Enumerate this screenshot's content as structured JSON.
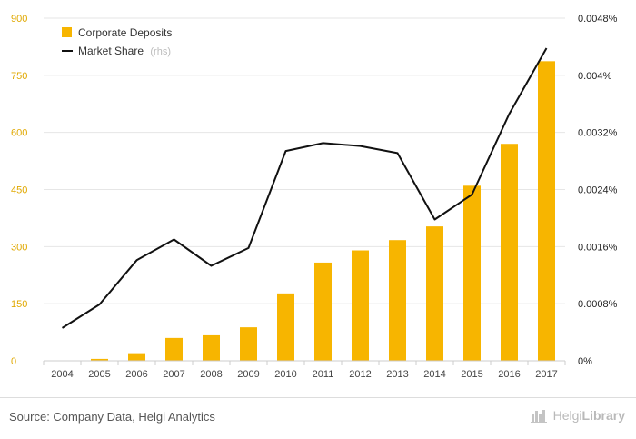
{
  "chart_data": {
    "type": "bar+line",
    "categories": [
      "2004",
      "2005",
      "2006",
      "2007",
      "2008",
      "2009",
      "2010",
      "2011",
      "2012",
      "2013",
      "2014",
      "2015",
      "2016",
      "2017"
    ],
    "series": [
      {
        "name": "Corporate Deposits",
        "type": "bar",
        "axis": "left",
        "color": "#F7B500",
        "values": [
          0.5,
          5,
          20,
          60,
          67,
          88,
          177,
          258,
          290,
          317,
          353,
          460,
          570,
          787
        ]
      },
      {
        "name": "Market Share",
        "name_suffix": "(rhs)",
        "type": "line",
        "axis": "right",
        "color": "#111111",
        "values": [
          0.00046,
          0.00079,
          0.00141,
          0.0017,
          0.00133,
          0.00158,
          0.00294,
          0.00305,
          0.00301,
          0.00291,
          0.00198,
          0.00233,
          0.00346,
          0.00438
        ]
      }
    ],
    "yleft": {
      "min": 0,
      "max": 900,
      "ticks": [
        "0",
        "150",
        "300",
        "450",
        "600",
        "750",
        "900"
      ]
    },
    "yright": {
      "min": 0,
      "max": 0.0048,
      "ticks": [
        "0%",
        "0.0008%",
        "0.0016%",
        "0.0024%",
        "0.0032%",
        "0.004%",
        "0.0048%"
      ]
    },
    "grid": true,
    "legend": "top-left"
  },
  "footer": {
    "source": "Source: Company Data, Helgi Analytics",
    "logo_light": "Helgi",
    "logo_bold": "Library"
  }
}
